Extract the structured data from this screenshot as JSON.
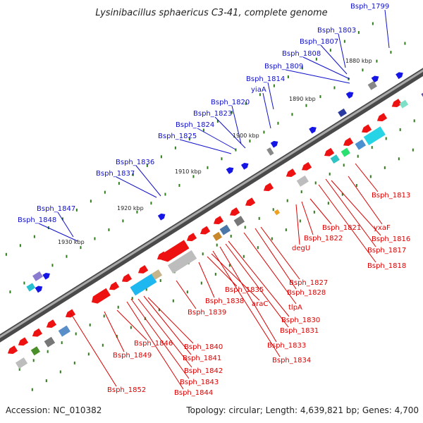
{
  "title": "Lysinibacillus sphaericus C3-41, complete genome",
  "footer": {
    "accession": "Accession: NC_010382",
    "topology": "Topology: circular; Length: 4,639,821 bp; Genes: 4,700"
  },
  "colors": {
    "backbone": "#7a7a7a",
    "forward_label": "#1010cc",
    "reverse_label": "#dd0000",
    "forward_feature": "#1515e6",
    "reverse_feature": "#ee1111",
    "tick": "#2e7d1a"
  },
  "scale_labels": [
    "1880 kbp",
    "1890 kbp",
    "1900 kbp",
    "1910 kbp",
    "1920 kbp",
    "1930 kbp"
  ],
  "forward_gene_labels": [
    "Bsph_1799",
    "Bsph_1803",
    "Bsph_1807",
    "Bsph_1808",
    "Bsph_1809",
    "Bsph_1814",
    "yiaA",
    "Bsph_1820",
    "Bsph_1823",
    "Bsph_1824",
    "Bsph_1825",
    "Bsph_1836",
    "Bsph_1837",
    "Bsph_1847",
    "Bsph_1848"
  ],
  "reverse_gene_labels": [
    "Bsph_1813",
    "yxaF",
    "Bsph_1816",
    "Bsph_1817",
    "Bsph_1818",
    "Bsph_1821",
    "Bsph_1822",
    "degU",
    "Bsph_1827",
    "Bsph_1828",
    "tlpA",
    "Bsph_1830",
    "Bsph_1831",
    "Bsph_1833",
    "Bsph_1834",
    "Bsph_1835",
    "araC",
    "Bsph_1838",
    "Bsph_1839",
    "Bsph_1840",
    "Bsph_1841",
    "Bsph_1842",
    "Bsph_1843",
    "Bsph_1844",
    "Bsph_1846",
    "Bsph_1849",
    "Bsph_1852"
  ]
}
